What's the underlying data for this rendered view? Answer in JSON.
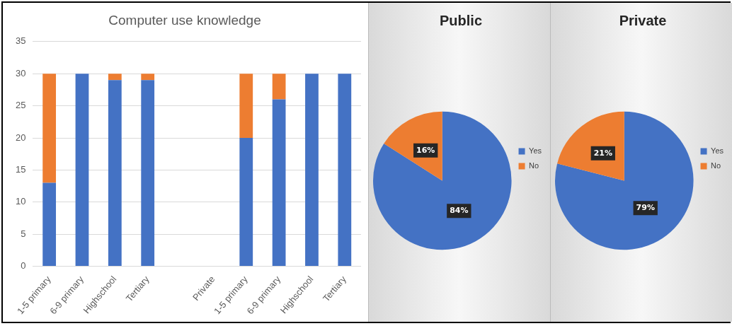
{
  "chart_data": [
    {
      "type": "bar",
      "title": "Computer use knowledge",
      "stacked": true,
      "categories": [
        "1-5 primary",
        "6-9 primary",
        "Highschool",
        "Tertiary",
        null,
        "Private",
        "1-5 primary",
        "6-9 primary",
        "Highschool",
        "Tertiary"
      ],
      "series": [
        {
          "color": "#4472c4",
          "values": [
            13,
            30,
            29,
            29,
            null,
            null,
            20,
            26,
            30,
            30
          ]
        },
        {
          "color": "#ed7d31",
          "values": [
            17,
            0,
            1,
            1,
            null,
            null,
            10,
            4,
            0,
            0
          ]
        }
      ],
      "ylim": [
        0,
        35
      ],
      "yticks": [
        0,
        5,
        10,
        15,
        20,
        25,
        30,
        35
      ],
      "grid": "y",
      "legend": false
    },
    {
      "type": "pie",
      "title": "Public",
      "categories": [
        "Yes",
        "No"
      ],
      "values": [
        84,
        16
      ],
      "colors": [
        "#4472c4",
        "#ed7d31"
      ],
      "value_labels": [
        "84%",
        "16%"
      ],
      "legend": "right"
    },
    {
      "type": "pie",
      "title": "Private",
      "categories": [
        "Yes",
        "No"
      ],
      "values": [
        79,
        21
      ],
      "colors": [
        "#4472c4",
        "#ed7d31"
      ],
      "value_labels": [
        "79%",
        "21%"
      ],
      "legend": "right"
    }
  ]
}
